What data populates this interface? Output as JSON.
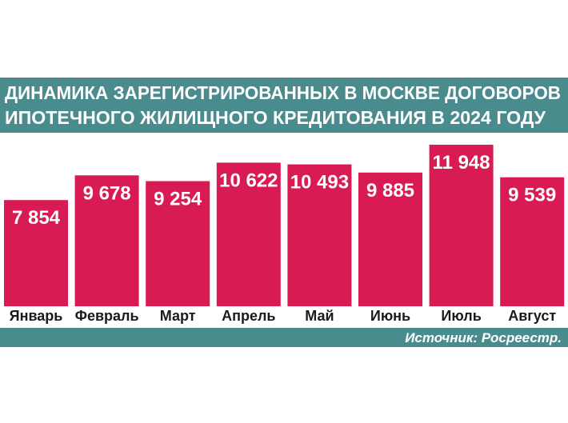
{
  "colors": {
    "bar": "#d81b53",
    "band": "#4a8c8d",
    "label": "#1a1a1a"
  },
  "chart_data": {
    "type": "bar",
    "title_lines": [
      "ДИНАМИКА ЗАРЕГИСТРИРОВАННЫХ В МОСКВЕ ДОГОВОРОВ",
      "ИПОТЕЧНОГО ЖИЛИЩНОГО КРЕДИТОВАНИЯ В  2024 ГОДУ"
    ],
    "categories": [
      "Январь",
      "Февраль",
      "Март",
      "Апрель",
      "Май",
      "Июнь",
      "Июль",
      "Август"
    ],
    "values": [
      7854,
      9678,
      9254,
      10622,
      10493,
      9885,
      11948,
      9539
    ],
    "value_labels": [
      "7 854",
      "9 678",
      "9 254",
      "10 622",
      "10 493",
      "9 885",
      "11 948",
      "9 539"
    ],
    "source": "Источник: Росреестр.",
    "ylim": [
      0,
      12500
    ],
    "grid": false,
    "legend": "none"
  }
}
